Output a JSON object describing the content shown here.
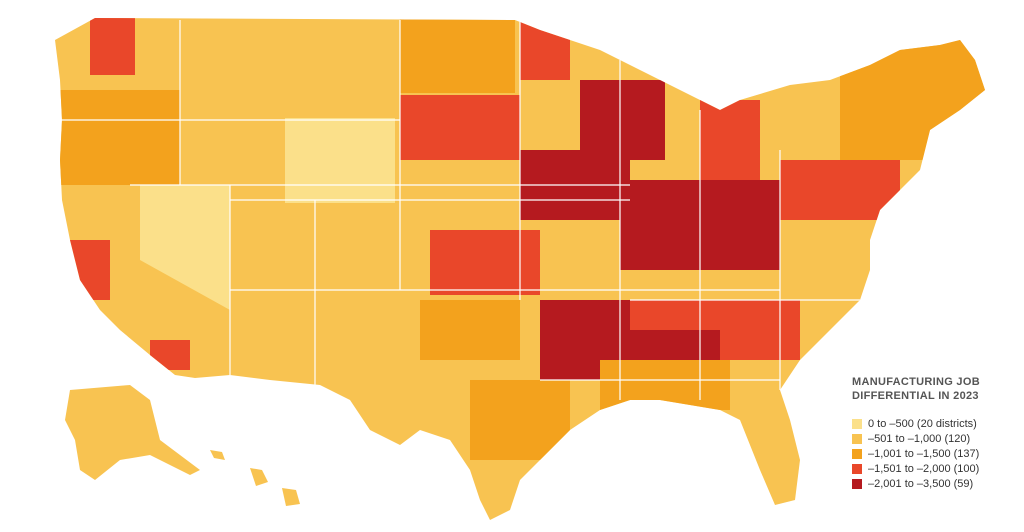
{
  "legend": {
    "title_lines": [
      "MANUFACTURING JOB",
      "DIFFERENTIAL IN 2023"
    ],
    "items": [
      {
        "label": "0 to –500 (20 districts)",
        "color": "#fbe08a"
      },
      {
        "label": "–501 to –1,000 (120)",
        "color": "#f8c351"
      },
      {
        "label": "–1,001 to –1,500 (137)",
        "color": "#f3a21d"
      },
      {
        "label": "–1,501 to –2,000 (100)",
        "color": "#e9472a"
      },
      {
        "label": "–2,001 to –3,500 (59)",
        "color": "#b51a1f"
      }
    ]
  }
}
